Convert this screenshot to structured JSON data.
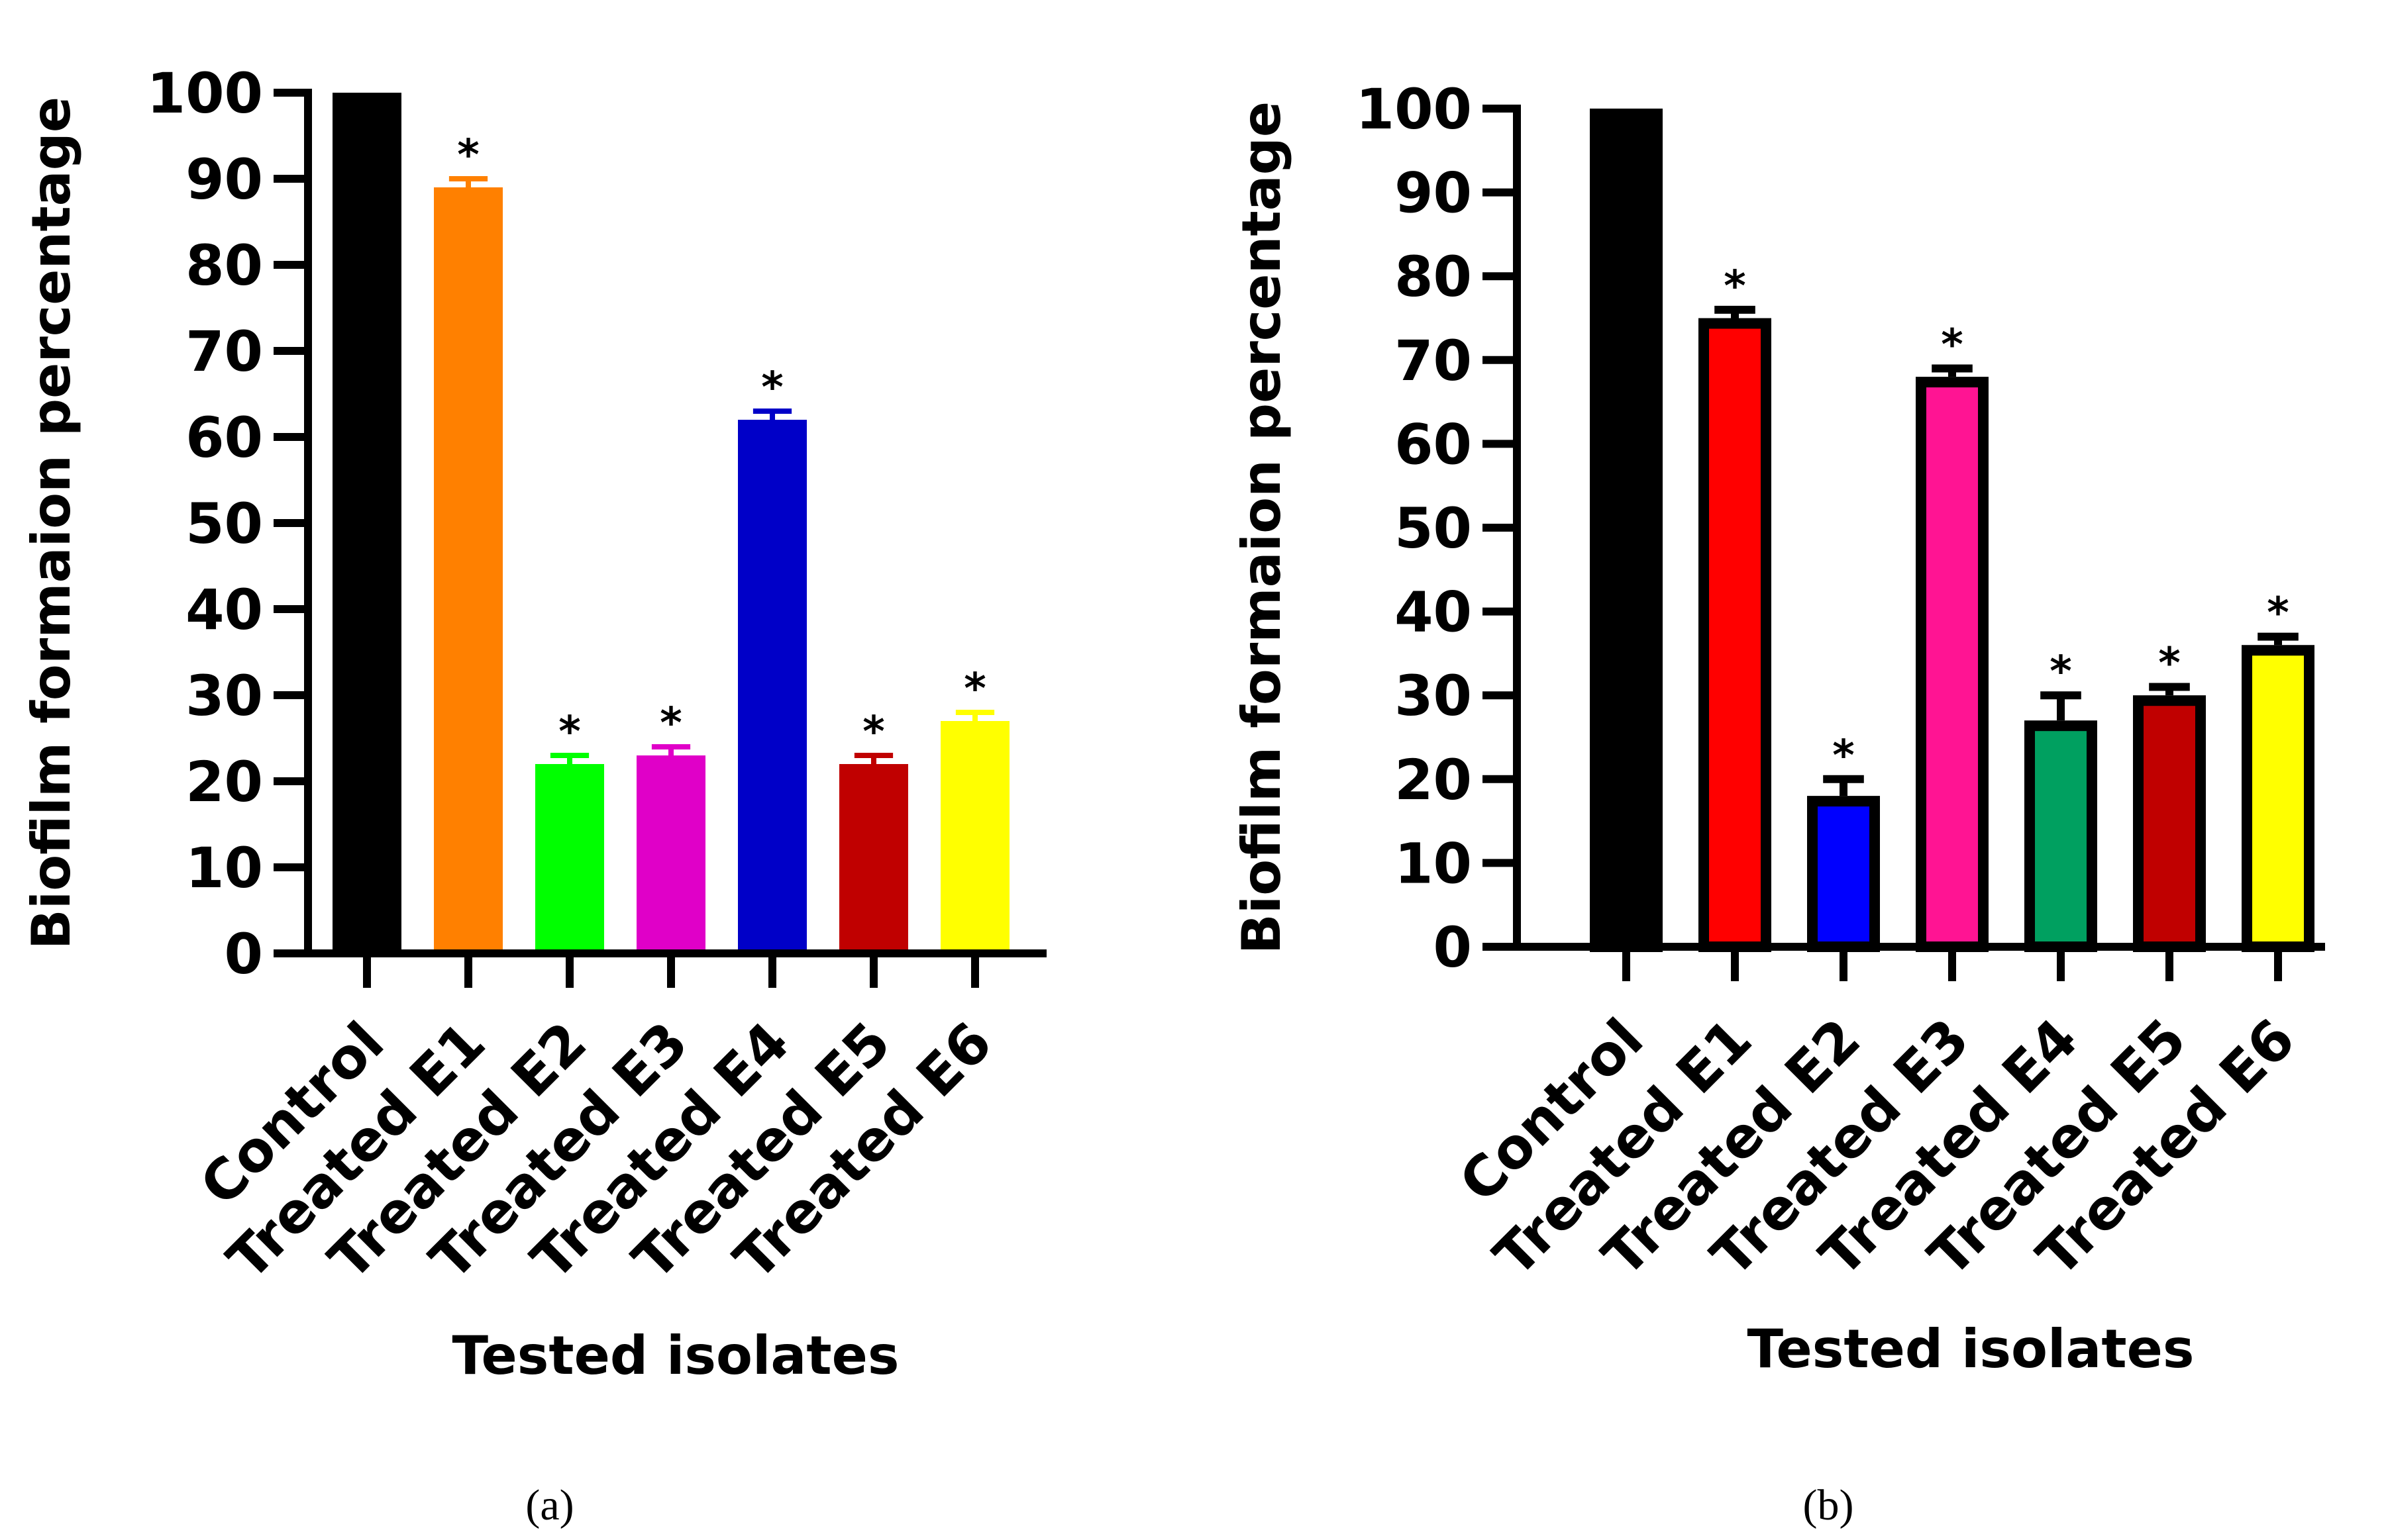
{
  "chart_data": [
    {
      "type": "bar",
      "panel_label": "(a)",
      "categories": [
        "Control",
        "Treated E1",
        "Treated E2",
        "Treated E3",
        "Treated E4",
        "Treated E5",
        "Treated E6"
      ],
      "values": [
        100,
        89,
        22,
        23,
        62,
        22,
        27
      ],
      "errors": [
        0,
        1,
        1,
        1,
        1,
        1,
        1
      ],
      "significance": [
        "",
        "*",
        "*",
        "*",
        "*",
        "*",
        "*"
      ],
      "colors": [
        "#000000",
        "#ff8000",
        "#00ff00",
        "#e000c8",
        "#0000c8",
        "#c00000",
        "#ffff00"
      ],
      "bar_outline": false,
      "xlabel": "Tested isolates",
      "ylabel": "Biofilm formaion percentage",
      "ylim": [
        0,
        100
      ],
      "yticks": [
        0,
        10,
        20,
        30,
        40,
        50,
        60,
        70,
        80,
        90,
        100
      ],
      "grid": false
    },
    {
      "type": "bar",
      "panel_label": "(b)",
      "categories": [
        "Control",
        "Treated E1",
        "Treated E2",
        "Treated E3",
        "Treated E4",
        "Treated E5",
        "Treated E6"
      ],
      "values": [
        100,
        75,
        18,
        68,
        27,
        30,
        36
      ],
      "errors": [
        0,
        1,
        2,
        1,
        3,
        1,
        1
      ],
      "significance": [
        "",
        "*",
        "*",
        "*",
        "*",
        "*",
        "*"
      ],
      "colors": [
        "#000000",
        "#ff0000",
        "#0000ff",
        "#ff1493",
        "#00a060",
        "#c00000",
        "#ffff00"
      ],
      "bar_outline": true,
      "xlabel": "Tested isolates",
      "ylabel": "Biofilm formaion percentage",
      "ylim": [
        0,
        100
      ],
      "yticks": [
        0,
        10,
        20,
        30,
        40,
        50,
        60,
        70,
        80,
        90,
        100
      ],
      "grid": false
    }
  ]
}
